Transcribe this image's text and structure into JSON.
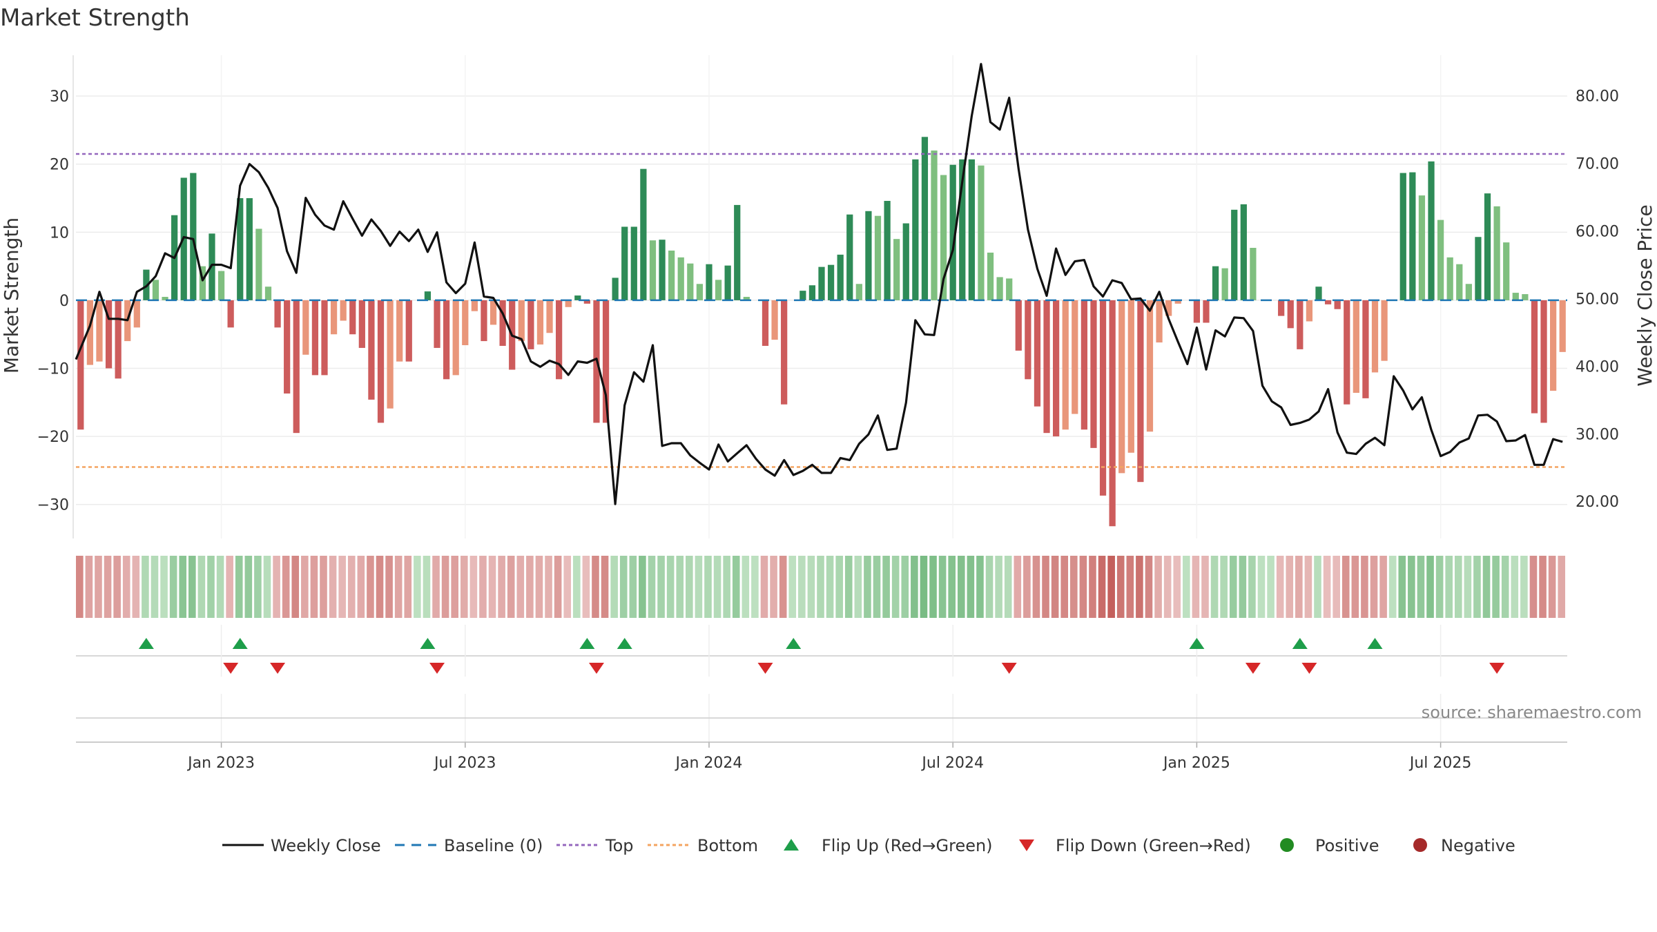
{
  "chart_data": {
    "type": "bar",
    "title": "Market Strength",
    "y_left_label": "Market Strength",
    "y_right_label": "Weekly Close Price",
    "y_left_range": [
      -35,
      36
    ],
    "y_right_range": [
      14.5,
      86
    ],
    "y_left_ticks": [
      30,
      20,
      10,
      0,
      -10,
      -20,
      -30
    ],
    "y_left_tick_labels": [
      "30",
      "20",
      "10",
      "0",
      "−10",
      "−20",
      "−30"
    ],
    "y_right_ticks": [
      80,
      70,
      60,
      50,
      40,
      30,
      20
    ],
    "y_right_tick_labels": [
      "80.00",
      "70.00",
      "60.00",
      "50.00",
      "40.00",
      "30.00",
      "20.00"
    ],
    "x_tick_labels": [
      {
        "week": 15,
        "label": "Jan 2023"
      },
      {
        "week": 41,
        "label": "Jul 2023"
      },
      {
        "week": 67,
        "label": "Jan 2024"
      },
      {
        "week": 93,
        "label": "Jul 2024"
      },
      {
        "week": 119,
        "label": "Jan 2025"
      },
      {
        "week": 145,
        "label": "Jul 2025"
      }
    ],
    "top_level": 21.5,
    "bottom_level": -24.5,
    "strength": [
      -19,
      -9.5,
      -9,
      -10,
      -11.5,
      -6,
      -4,
      4.5,
      3,
      0.5,
      12.5,
      18,
      18.7,
      5,
      9.8,
      4.3,
      -4,
      15,
      15,
      10.5,
      2,
      -4,
      -13.7,
      -19.5,
      -8,
      -11,
      -11,
      -5,
      -3,
      -5,
      -7,
      -14.6,
      -18,
      -15.9,
      -9,
      -9,
      0,
      1.3,
      -7,
      -11.6,
      -11,
      -6.6,
      -1.6,
      -6,
      -3.6,
      -6.7,
      -10.2,
      -6,
      -7.2,
      -6.5,
      -4.8,
      -11.6,
      -1,
      0.7,
      -0.5,
      -18,
      -18,
      3.3,
      10.8,
      10.8,
      19.3,
      8.8,
      8.9,
      7.3,
      6.3,
      5.4,
      2.4,
      5.3,
      3,
      5.1,
      14,
      0.5,
      0,
      -6.7,
      -5.8,
      -15.3,
      0,
      1.4,
      2.2,
      4.9,
      5.2,
      6.7,
      12.6,
      2.4,
      13.1,
      12.4,
      14.6,
      9,
      11.3,
      20.7,
      24,
      22,
      18.4,
      19.9,
      20.7,
      20.7,
      19.8,
      7,
      3.4,
      3.2,
      -7.4,
      -11.6,
      -15.6,
      -19.5,
      -20,
      -19,
      -16.7,
      -19,
      -21.7,
      -28.7,
      -33.2,
      -25.4,
      -22.4,
      -26.7,
      -19.3,
      -6.2,
      -2.3,
      -0.5,
      0,
      -3.3,
      -3.3,
      5,
      4.7,
      13.3,
      14.1,
      7.7,
      0,
      0,
      -2.3,
      -4.1,
      -7.2,
      -3.1,
      2,
      -0.6,
      -1.3,
      -15.3,
      -13.6,
      -14.4,
      -10.6,
      -8.9,
      0,
      18.7,
      18.8,
      15.4,
      20.4,
      11.8,
      6.3,
      5.3,
      2.4,
      9.3,
      15.7,
      13.8,
      8.5,
      1.1,
      0.9,
      -16.6,
      -18,
      -13.3,
      -7.6
    ],
    "weekly_close": [
      41,
      46,
      51,
      47,
      47,
      46.8,
      51,
      51.8,
      53.3,
      56.7,
      56,
      59.1,
      58.8,
      52.7,
      55,
      55,
      54.5,
      66.7,
      69.9,
      68.7,
      66.4,
      63.4,
      57,
      53.8,
      64.9,
      62.4,
      60.8,
      60.2,
      64.4,
      61.8,
      59.3,
      61.7,
      60,
      57.8,
      59.9,
      58.5,
      60.2,
      56.9,
      59.8,
      52.4,
      50.8,
      52.2,
      58.3,
      50.3,
      50.1,
      47.8,
      44.5,
      44,
      40.7,
      39.9,
      40.8,
      40.3,
      38.7,
      40.7,
      40.5,
      41.1,
      35.7,
      19.6,
      34.2,
      39.1,
      37.7,
      43.1,
      28.2,
      28.6,
      28.6,
      26.8,
      25.7,
      24.7,
      28.4,
      25.9,
      27.1,
      28.3,
      26.3,
      24.7,
      23.8,
      26.1,
      23.9,
      24.5,
      25.4,
      24.2,
      24.2,
      26.4,
      26.1,
      28.5,
      29.9,
      32.7,
      27.6,
      27.8,
      34.6,
      46.8,
      44.7,
      44.6,
      52.9,
      57.2,
      67.3,
      77,
      84.7,
      76.1,
      75,
      79.7,
      69.2,
      60.2,
      54.4,
      50.4,
      57.4,
      53.5,
      55.5,
      55.7,
      51.8,
      50.3,
      52.7,
      52.3,
      49.9,
      50,
      48.2,
      51,
      47,
      43.6,
      40.3,
      45.7,
      39.5,
      45.3,
      44.4,
      47.2,
      47.1,
      45.2,
      37.1,
      34.8,
      33.9,
      31.3,
      31.6,
      32.1,
      33.3,
      36.6,
      30.2,
      27.2,
      27,
      28.5,
      29.4,
      28.3,
      38.5,
      36.4,
      33.6,
      35.4,
      30.6,
      26.7,
      27.3,
      28.7,
      29.3,
      32.7,
      32.8,
      31.8,
      28.9,
      29,
      29.8,
      25.4,
      25.4,
      29.2,
      28.8
    ],
    "flip_up_weeks": [
      7,
      17,
      37,
      54,
      58,
      76,
      119,
      130,
      138
    ],
    "flip_down_weeks": [
      16,
      21,
      38,
      55,
      73,
      99,
      125,
      131,
      151
    ],
    "legend": [
      {
        "key": "close",
        "label": "Weekly Close"
      },
      {
        "key": "baseline",
        "label": "Baseline (0)"
      },
      {
        "key": "top",
        "label": "Top"
      },
      {
        "key": "bottom",
        "label": "Bottom"
      },
      {
        "key": "flip_up",
        "label": "Flip Up (Red→Green)"
      },
      {
        "key": "flip_down",
        "label": "Flip Down (Green→Red)"
      },
      {
        "key": "positive",
        "label": "Positive"
      },
      {
        "key": "negative",
        "label": "Negative"
      }
    ],
    "source": "source: sharemaestro.com"
  },
  "colors": {
    "bar_pos_strong": "#2e8b57",
    "bar_pos_weak": "#7fbf7f",
    "bar_neg_strong": "#cd5c5c",
    "bar_neg_weak": "#e9967a",
    "close_line": "#111111",
    "baseline": "#1f77b4",
    "top_line": "#9467bd",
    "bottom_line": "#f4a460",
    "flip_up": "#1e9e4a",
    "flip_down": "#d62728",
    "positive_dot": "#228b22",
    "negative_dot": "#a52a2a"
  }
}
